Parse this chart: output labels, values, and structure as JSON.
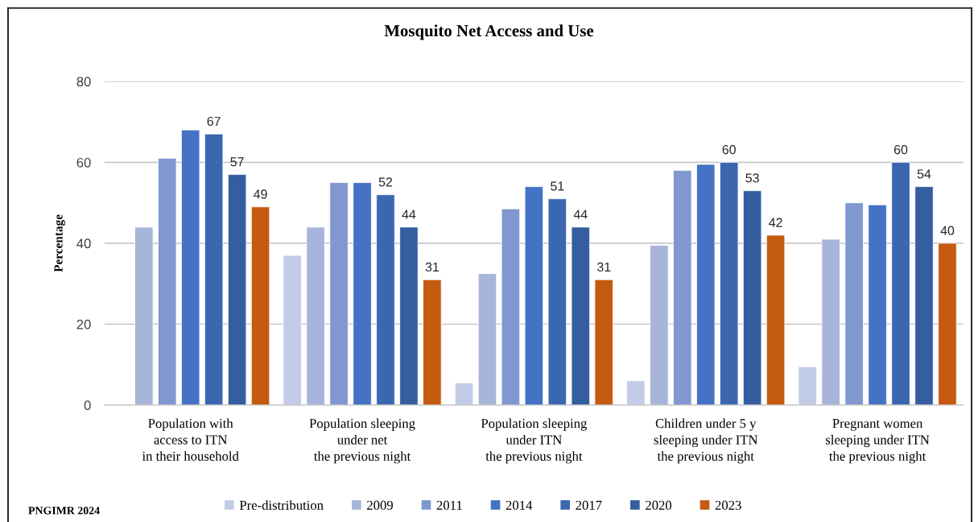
{
  "chart_data": {
    "type": "bar",
    "title": "Mosquito Net Access and Use",
    "ylabel": "Percentage",
    "categories": [
      "Population with\naccess to ITN\nin their household",
      "Population sleeping\nunder net\nthe previous night",
      "Population sleeping\nunder ITN\nthe previous night",
      "Children under 5 y\nsleeping under ITN\nthe previous night",
      "Pregnant women\nsleeping under ITN\nthe previous night"
    ],
    "series": [
      {
        "name": "Pre-distribution",
        "color": "#c3cce6",
        "values": [
          null,
          37,
          5.5,
          6,
          9.5
        ]
      },
      {
        "name": "2009",
        "color": "#a8b5da",
        "values": [
          44,
          44,
          32.5,
          39.5,
          41
        ]
      },
      {
        "name": "2011",
        "color": "#8097cf",
        "values": [
          61,
          55,
          48.5,
          58,
          50
        ]
      },
      {
        "name": "2014",
        "color": "#4472c4",
        "values": [
          68,
          55,
          54,
          59.5,
          49.5
        ]
      },
      {
        "name": "2017",
        "color": "#3b67b1",
        "values": [
          67,
          52,
          51,
          60,
          60
        ],
        "value_labels": [
          "67",
          "52",
          "51",
          "60",
          "60"
        ]
      },
      {
        "name": "2020",
        "color": "#355ea0",
        "values": [
          57,
          44,
          44,
          53,
          54
        ],
        "value_labels": [
          "57",
          "44",
          "44",
          "53",
          "54"
        ]
      },
      {
        "name": "2023",
        "color": "#c55a11",
        "values": [
          49,
          31,
          31,
          42,
          40
        ],
        "value_labels": [
          "49",
          "31",
          "31",
          "42",
          "40"
        ]
      }
    ],
    "ylim": [
      0,
      80
    ],
    "yticks": [
      0,
      20,
      40,
      60,
      80
    ],
    "grid": "y",
    "legend": "bottom",
    "annotations": [
      "PNGIMR 2024"
    ]
  }
}
